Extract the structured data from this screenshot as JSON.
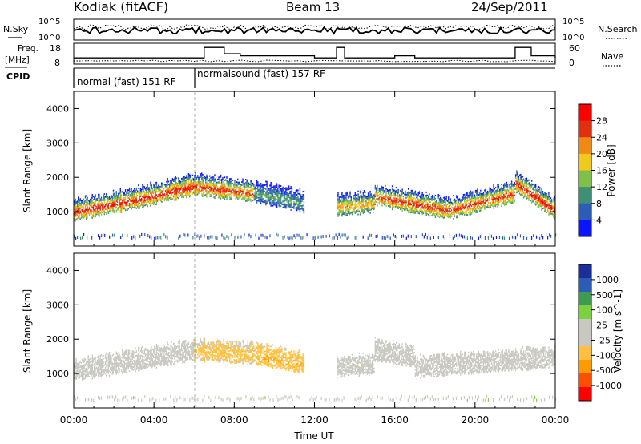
{
  "header": {
    "station": "Kodiak (fitACF)",
    "beam": "Beam 13",
    "date": "24/Sep/2011"
  },
  "status_panel": {
    "nsky_label": "N.Sky",
    "nsearch_label": "N.Search",
    "freq_label_line1": "Freq.",
    "freq_label_line2": "[MHz]",
    "nave_label": "Nave",
    "cpid_label": "CPID",
    "noise_ticks": [
      "10^5",
      "10^0"
    ],
    "freq_ticks": [
      "18",
      "8"
    ],
    "nave_ticks": [
      "60",
      "0"
    ],
    "cpid_modes": [
      {
        "label": "normal (fast) 151 RF",
        "start_hour": 0,
        "end_hour": 6
      },
      {
        "label": "normalsound (fast) 157 RF",
        "start_hour": 6,
        "end_hour": 24
      }
    ],
    "freq_mhz_series": [
      {
        "hour": 0.0,
        "mhz": 11
      },
      {
        "hour": 6.0,
        "mhz": 11
      },
      {
        "hour": 6.5,
        "mhz": 16
      },
      {
        "hour": 7.5,
        "mhz": 13
      },
      {
        "hour": 8.3,
        "mhz": 12
      },
      {
        "hour": 12.0,
        "mhz": 11
      },
      {
        "hour": 13.1,
        "mhz": 16
      },
      {
        "hour": 13.5,
        "mhz": 11
      },
      {
        "hour": 16.0,
        "mhz": 12
      },
      {
        "hour": 17.0,
        "mhz": 11
      },
      {
        "hour": 22.0,
        "mhz": 16
      },
      {
        "hour": 22.8,
        "mhz": 12
      },
      {
        "hour": 24.0,
        "mhz": 11
      }
    ]
  },
  "colors": {
    "power_scale": [
      "#0a14ff",
      "#2a5cb8",
      "#3f8f74",
      "#7fbf4a",
      "#f0c91c",
      "#f08a14",
      "#e03010",
      "#ff0000"
    ],
    "velocity_scale": [
      "#ff0000",
      "#ff4e00",
      "#ff9a00",
      "#ffc040",
      "#c8c8c0",
      "#c8c8c0",
      "#7ad23c",
      "#3f9a52",
      "#2a5cb8",
      "#1a2f9a"
    ]
  },
  "chart_data": [
    {
      "type": "heatmap",
      "title": "Power",
      "xlabel": "Time UT",
      "ylabel": "Slant Range [km]",
      "colorbar_label": "Power [dB]",
      "colorbar_ticks": [
        "28",
        "24",
        "20",
        "16",
        "12",
        "8",
        "4"
      ],
      "xlim": [
        0,
        24
      ],
      "ylim": [
        0,
        4500
      ],
      "x_tick_labels": [
        "00:00",
        "04:00",
        "08:00",
        "12:00",
        "16:00",
        "20:00",
        "00:00"
      ],
      "y_tick_labels": [
        "1000",
        "2000",
        "3000",
        "4000"
      ],
      "vmin": 0,
      "vmax": 32,
      "scatter_bands": [
        {
          "start_hour": 0.0,
          "end_hour": 3.0,
          "base_range_km": 950,
          "end_range_km": 1300,
          "peak_power_db": 30
        },
        {
          "start_hour": 3.0,
          "end_hour": 6.0,
          "base_range_km": 1300,
          "end_range_km": 1700,
          "peak_power_db": 30
        },
        {
          "start_hour": 6.0,
          "end_hour": 9.0,
          "base_range_km": 1700,
          "end_range_km": 1500,
          "peak_power_db": 28
        },
        {
          "start_hour": 9.0,
          "end_hour": 11.5,
          "base_range_km": 1500,
          "end_range_km": 1200,
          "peak_power_db": 12
        },
        {
          "start_hour": 13.1,
          "end_hour": 15.0,
          "base_range_km": 1100,
          "end_range_km": 1200,
          "peak_power_db": 22
        },
        {
          "start_hour": 15.0,
          "end_hour": 18.7,
          "base_range_km": 1400,
          "end_range_km": 1000,
          "peak_power_db": 28
        },
        {
          "start_hour": 18.7,
          "end_hour": 22.0,
          "base_range_km": 1000,
          "end_range_km": 1500,
          "peak_power_db": 28
        },
        {
          "start_hour": 22.0,
          "end_hour": 24.0,
          "base_range_km": 1800,
          "end_range_km": 1000,
          "peak_power_db": 30
        }
      ]
    },
    {
      "type": "heatmap",
      "title": "Velocity",
      "xlabel": "Time UT",
      "ylabel": "Slant Range [km]",
      "colorbar_label": "Velocity [m s^-1]",
      "colorbar_ticks": [
        "1000",
        "500",
        "100",
        "25",
        "-25",
        "-100",
        "-500",
        "-1000"
      ],
      "xlim": [
        0,
        24
      ],
      "ylim": [
        0,
        4500
      ],
      "x_tick_labels": [
        "00:00",
        "04:00",
        "08:00",
        "12:00",
        "16:00",
        "20:00",
        "00:00"
      ],
      "y_tick_labels": [
        "1000",
        "2000",
        "3000",
        "4000"
      ],
      "vmin": -1000,
      "vmax": 1000,
      "scatter_bands": [
        {
          "start_hour": 0.0,
          "end_hour": 6.0,
          "base_range_km": 1000,
          "end_range_km": 1600,
          "velocity_ms": 0
        },
        {
          "start_hour": 6.0,
          "end_hour": 9.0,
          "base_range_km": 1600,
          "end_range_km": 1500,
          "velocity_ms": -300
        },
        {
          "start_hour": 9.0,
          "end_hour": 11.5,
          "base_range_km": 1500,
          "end_range_km": 1200,
          "velocity_ms": -400
        },
        {
          "start_hour": 13.1,
          "end_hour": 15.0,
          "base_range_km": 1100,
          "end_range_km": 1200,
          "velocity_ms": -150
        },
        {
          "start_hour": 15.0,
          "end_hour": 17.0,
          "base_range_km": 1600,
          "end_range_km": 1400,
          "velocity_ms": 120
        },
        {
          "start_hour": 17.0,
          "end_hour": 24.0,
          "base_range_km": 1100,
          "end_range_km": 1400,
          "velocity_ms": 0
        }
      ]
    }
  ]
}
